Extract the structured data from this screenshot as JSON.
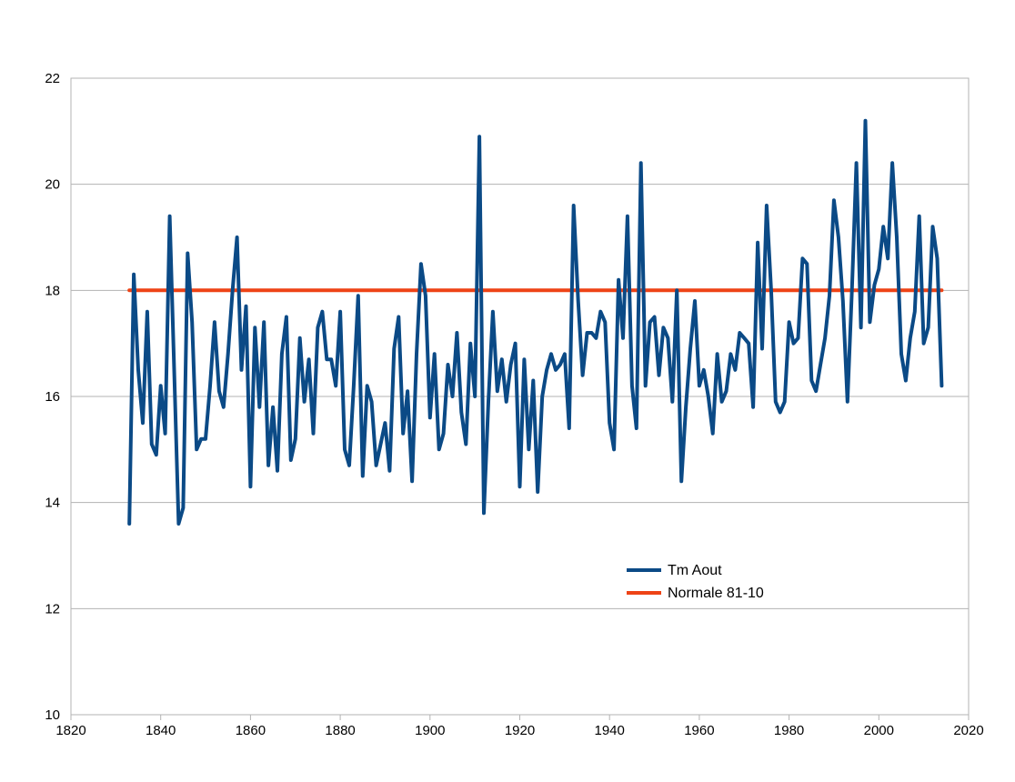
{
  "chart_data": {
    "type": "line",
    "title": "",
    "xlabel": "",
    "ylabel": "",
    "xlim": [
      1820,
      2020
    ],
    "ylim": [
      10,
      22
    ],
    "x_ticks": [
      1820,
      1840,
      1860,
      1880,
      1900,
      1920,
      1940,
      1960,
      1980,
      2000,
      2020
    ],
    "y_ticks": [
      10,
      12,
      14,
      16,
      18,
      20,
      22
    ],
    "x_tick_labels": [
      "1820",
      "1840",
      "1860",
      "1880",
      "1900",
      "1920",
      "1940",
      "1960",
      "1980",
      "2000",
      "2020"
    ],
    "y_tick_labels": [
      "10",
      "12",
      "14",
      "16",
      "18",
      "20",
      "22"
    ],
    "grid": "horizontal",
    "legend_position": "inside-bottom-center",
    "series": [
      {
        "name": "Tm Aout",
        "color": "#0b4a86",
        "x": [
          1833,
          1834,
          1835,
          1836,
          1837,
          1838,
          1839,
          1840,
          1841,
          1842,
          1843,
          1844,
          1845,
          1846,
          1847,
          1848,
          1849,
          1850,
          1851,
          1852,
          1853,
          1854,
          1855,
          1856,
          1857,
          1858,
          1859,
          1860,
          1861,
          1862,
          1863,
          1864,
          1865,
          1866,
          1867,
          1868,
          1869,
          1870,
          1871,
          1872,
          1873,
          1874,
          1875,
          1876,
          1877,
          1878,
          1879,
          1880,
          1881,
          1882,
          1883,
          1884,
          1885,
          1886,
          1887,
          1888,
          1889,
          1890,
          1891,
          1892,
          1893,
          1894,
          1895,
          1896,
          1897,
          1898,
          1899,
          1900,
          1901,
          1902,
          1903,
          1904,
          1905,
          1906,
          1907,
          1908,
          1909,
          1910,
          1911,
          1912,
          1913,
          1914,
          1915,
          1916,
          1917,
          1918,
          1919,
          1920,
          1921,
          1922,
          1923,
          1924,
          1925,
          1926,
          1927,
          1928,
          1929,
          1930,
          1931,
          1932,
          1933,
          1934,
          1935,
          1936,
          1937,
          1938,
          1939,
          1940,
          1941,
          1942,
          1943,
          1944,
          1945,
          1946,
          1947,
          1948,
          1949,
          1950,
          1951,
          1952,
          1953,
          1954,
          1955,
          1956,
          1957,
          1958,
          1959,
          1960,
          1961,
          1962,
          1963,
          1964,
          1965,
          1966,
          1967,
          1968,
          1969,
          1970,
          1971,
          1972,
          1973,
          1974,
          1975,
          1976,
          1977,
          1978,
          1979,
          1980,
          1981,
          1982,
          1983,
          1984,
          1985,
          1986,
          1987,
          1988,
          1989,
          1990,
          1991,
          1992,
          1993,
          1994,
          1995,
          1996,
          1997,
          1998,
          1999,
          2000,
          2001,
          2002,
          2003,
          2004,
          2005,
          2006,
          2007,
          2008,
          2009,
          2010,
          2011,
          2012,
          2013,
          2014
        ],
        "values": [
          13.6,
          18.3,
          16.5,
          15.5,
          17.6,
          15.1,
          14.9,
          16.2,
          15.3,
          19.4,
          16.5,
          13.6,
          13.9,
          18.7,
          17.4,
          15.0,
          15.2,
          15.2,
          16.2,
          17.4,
          16.1,
          15.8,
          16.8,
          18.0,
          19.0,
          16.5,
          17.7,
          14.3,
          17.3,
          15.8,
          17.4,
          14.7,
          15.8,
          14.6,
          16.8,
          17.5,
          14.8,
          15.2,
          17.1,
          15.9,
          16.7,
          15.3,
          17.3,
          17.6,
          16.7,
          16.7,
          16.2,
          17.6,
          15.0,
          14.7,
          16.2,
          17.9,
          14.5,
          16.2,
          15.9,
          14.7,
          15.1,
          15.5,
          14.6,
          16.9,
          17.5,
          15.3,
          16.1,
          14.4,
          16.8,
          18.5,
          17.9,
          15.6,
          16.8,
          15.0,
          15.3,
          16.6,
          16.0,
          17.2,
          15.7,
          15.1,
          17.0,
          16.0,
          20.9,
          13.8,
          15.9,
          17.6,
          16.1,
          16.7,
          15.9,
          16.6,
          17.0,
          14.3,
          16.7,
          15.0,
          16.3,
          14.2,
          16.0,
          16.5,
          16.8,
          16.5,
          16.6,
          16.8,
          15.4,
          19.6,
          17.8,
          16.4,
          17.2,
          17.2,
          17.1,
          17.6,
          17.4,
          15.5,
          15.0,
          18.2,
          17.1,
          19.4,
          16.2,
          15.4,
          20.4,
          16.2,
          17.4,
          17.5,
          16.4,
          17.3,
          17.1,
          15.9,
          18.0,
          14.4,
          15.8,
          16.9,
          17.8,
          16.2,
          16.5,
          16.0,
          15.3,
          16.8,
          15.9,
          16.1,
          16.8,
          16.5,
          17.2,
          17.1,
          17.0,
          15.8,
          18.9,
          16.9,
          19.6,
          18.0,
          15.9,
          15.7,
          15.9,
          17.4,
          17.0,
          17.1,
          18.6,
          18.5,
          16.3,
          16.1,
          16.6,
          17.1,
          17.9,
          19.7,
          19.0,
          17.8,
          15.9,
          18.0,
          20.4,
          17.3,
          21.2,
          17.4,
          18.1,
          18.4,
          19.2,
          18.6,
          20.4,
          19.0,
          16.8,
          16.3,
          17.1,
          17.6,
          19.4,
          17.0,
          17.3,
          19.2,
          18.6,
          16.2
        ]
      },
      {
        "name": "Normale 81-10",
        "color": "#ee4316",
        "x": [
          1833,
          2014
        ],
        "values": [
          18.0,
          18.0
        ]
      }
    ]
  }
}
